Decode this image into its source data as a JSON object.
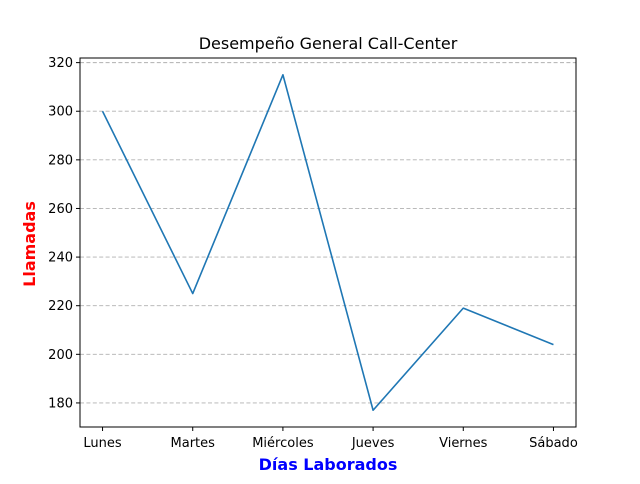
{
  "chart_data": {
    "type": "line",
    "title": "Desempeño General Call-Center",
    "xlabel": "Días Laborados",
    "ylabel": "Llamadas",
    "categories": [
      "Lunes",
      "Martes",
      "Miércoles",
      "Jueves",
      "Viernes",
      "Sábado"
    ],
    "values": [
      300,
      225,
      315,
      177,
      219,
      204
    ],
    "ylim": [
      170.1,
      321.9
    ],
    "yticks": [
      180,
      200,
      220,
      240,
      260,
      280,
      300,
      320
    ],
    "grid": {
      "axis": "y",
      "style": "dashed",
      "color": "#b0b0b0"
    },
    "line_color": "#1f77b4",
    "xlabel_color": "#0000ff",
    "ylabel_color": "#ff0000"
  }
}
